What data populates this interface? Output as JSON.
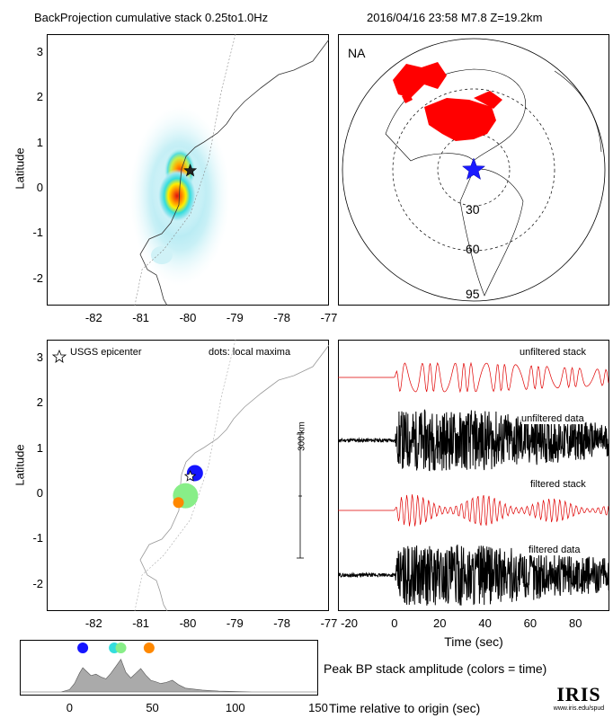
{
  "header": {
    "title": "BackProjection cumulative stack 0.25to1.0Hz",
    "event": "2016/04/16 23:58   M7.8   Z=19.2km"
  },
  "map_top": {
    "ylabel": "Latitude",
    "yticks": [
      "3",
      "2",
      "1",
      "0",
      "-1",
      "-2"
    ],
    "xticks": [
      "-82",
      "-81",
      "-80",
      "-79",
      "-78",
      "-77"
    ]
  },
  "globe": {
    "region_label": "NA",
    "ring_labels": [
      "30",
      "60",
      "95"
    ],
    "colors": {
      "stations": "#ff0000",
      "epicenter": "#1a1aff"
    }
  },
  "map_bottom": {
    "ylabel": "Latitude",
    "legend_star": "USGS epicenter",
    "legend_dots": "dots: local maxima",
    "scale_label": "300 km",
    "yticks": [
      "3",
      "2",
      "1",
      "0",
      "-1",
      "-2"
    ],
    "xticks": [
      "-82",
      "-81",
      "-80",
      "-79",
      "-78",
      "-77"
    ],
    "maxima": [
      {
        "lon": -79.85,
        "lat": 0.45,
        "color": "#1515ff"
      },
      {
        "lon": -80.05,
        "lat": -0.05,
        "color": "#88ee88"
      },
      {
        "lon": -80.2,
        "lat": -0.2,
        "color": "#ff8800"
      }
    ],
    "epicenter": {
      "lon": -79.95,
      "lat": 0.38
    }
  },
  "waveforms": {
    "labels": [
      "unfiltered stack",
      "unfiltered data",
      "filtered stack",
      "filtered data"
    ],
    "xticks": [
      "-20",
      "0",
      "20",
      "40",
      "60",
      "80"
    ],
    "xlabel": "Time (sec)"
  },
  "peak": {
    "caption": "Peak BP stack amplitude (colors = time)",
    "xticks": [
      "0",
      "50",
      "100",
      "150"
    ],
    "xlabel": "Time relative to origin (sec)",
    "dots": [
      {
        "t": 8,
        "color": "#1515ff"
      },
      {
        "t": 27,
        "color": "#33dddd"
      },
      {
        "t": 31,
        "color": "#88ee88"
      },
      {
        "t": 48,
        "color": "#ff8800"
      }
    ]
  },
  "logo": {
    "text": "IRIS",
    "url_text": "www.iris.edu/spud"
  },
  "chart_data": [
    {
      "type": "heatmap",
      "ylabel": "Latitude",
      "xlim": [
        -83,
        -77
      ],
      "ylim": [
        -2.6,
        3.4
      ],
      "peaks": [
        {
          "lon": -80.05,
          "lat": -0.12,
          "amp": 1.0
        },
        {
          "lon": -79.95,
          "lat": 0.4,
          "amp": 0.85
        }
      ]
    },
    {
      "type": "scatter",
      "ylabel": "Latitude",
      "xlim": [
        -83,
        -77
      ],
      "ylim": [
        -2.6,
        3.4
      ],
      "series": [
        {
          "x": [
            -79.85,
            -80.05,
            -80.2
          ],
          "y": [
            0.45,
            -0.05,
            -0.2
          ]
        }
      ]
    },
    {
      "type": "line",
      "xlabel": "Time (sec)",
      "xlim": [
        -25,
        95
      ],
      "series": [
        {
          "name": "unfiltered stack"
        },
        {
          "name": "unfiltered data"
        },
        {
          "name": "filtered stack"
        },
        {
          "name": "filtered data"
        }
      ]
    },
    {
      "type": "area",
      "xlabel": "Time relative to origin (sec)",
      "xlim": [
        -30,
        150
      ],
      "x": [
        -30,
        -5,
        0,
        3,
        6,
        8,
        10,
        13,
        16,
        19,
        22,
        25,
        28,
        31,
        34,
        37,
        40,
        43,
        46,
        49,
        52,
        55,
        58,
        62,
        66,
        70,
        80,
        90,
        100,
        110,
        120,
        150
      ],
      "values": [
        0,
        0,
        0.05,
        0.18,
        0.4,
        0.52,
        0.45,
        0.35,
        0.38,
        0.32,
        0.28,
        0.4,
        0.55,
        0.7,
        0.42,
        0.3,
        0.4,
        0.5,
        0.36,
        0.25,
        0.22,
        0.18,
        0.2,
        0.25,
        0.15,
        0.08,
        0.04,
        0.02,
        0.01,
        0,
        0,
        0
      ]
    }
  ]
}
